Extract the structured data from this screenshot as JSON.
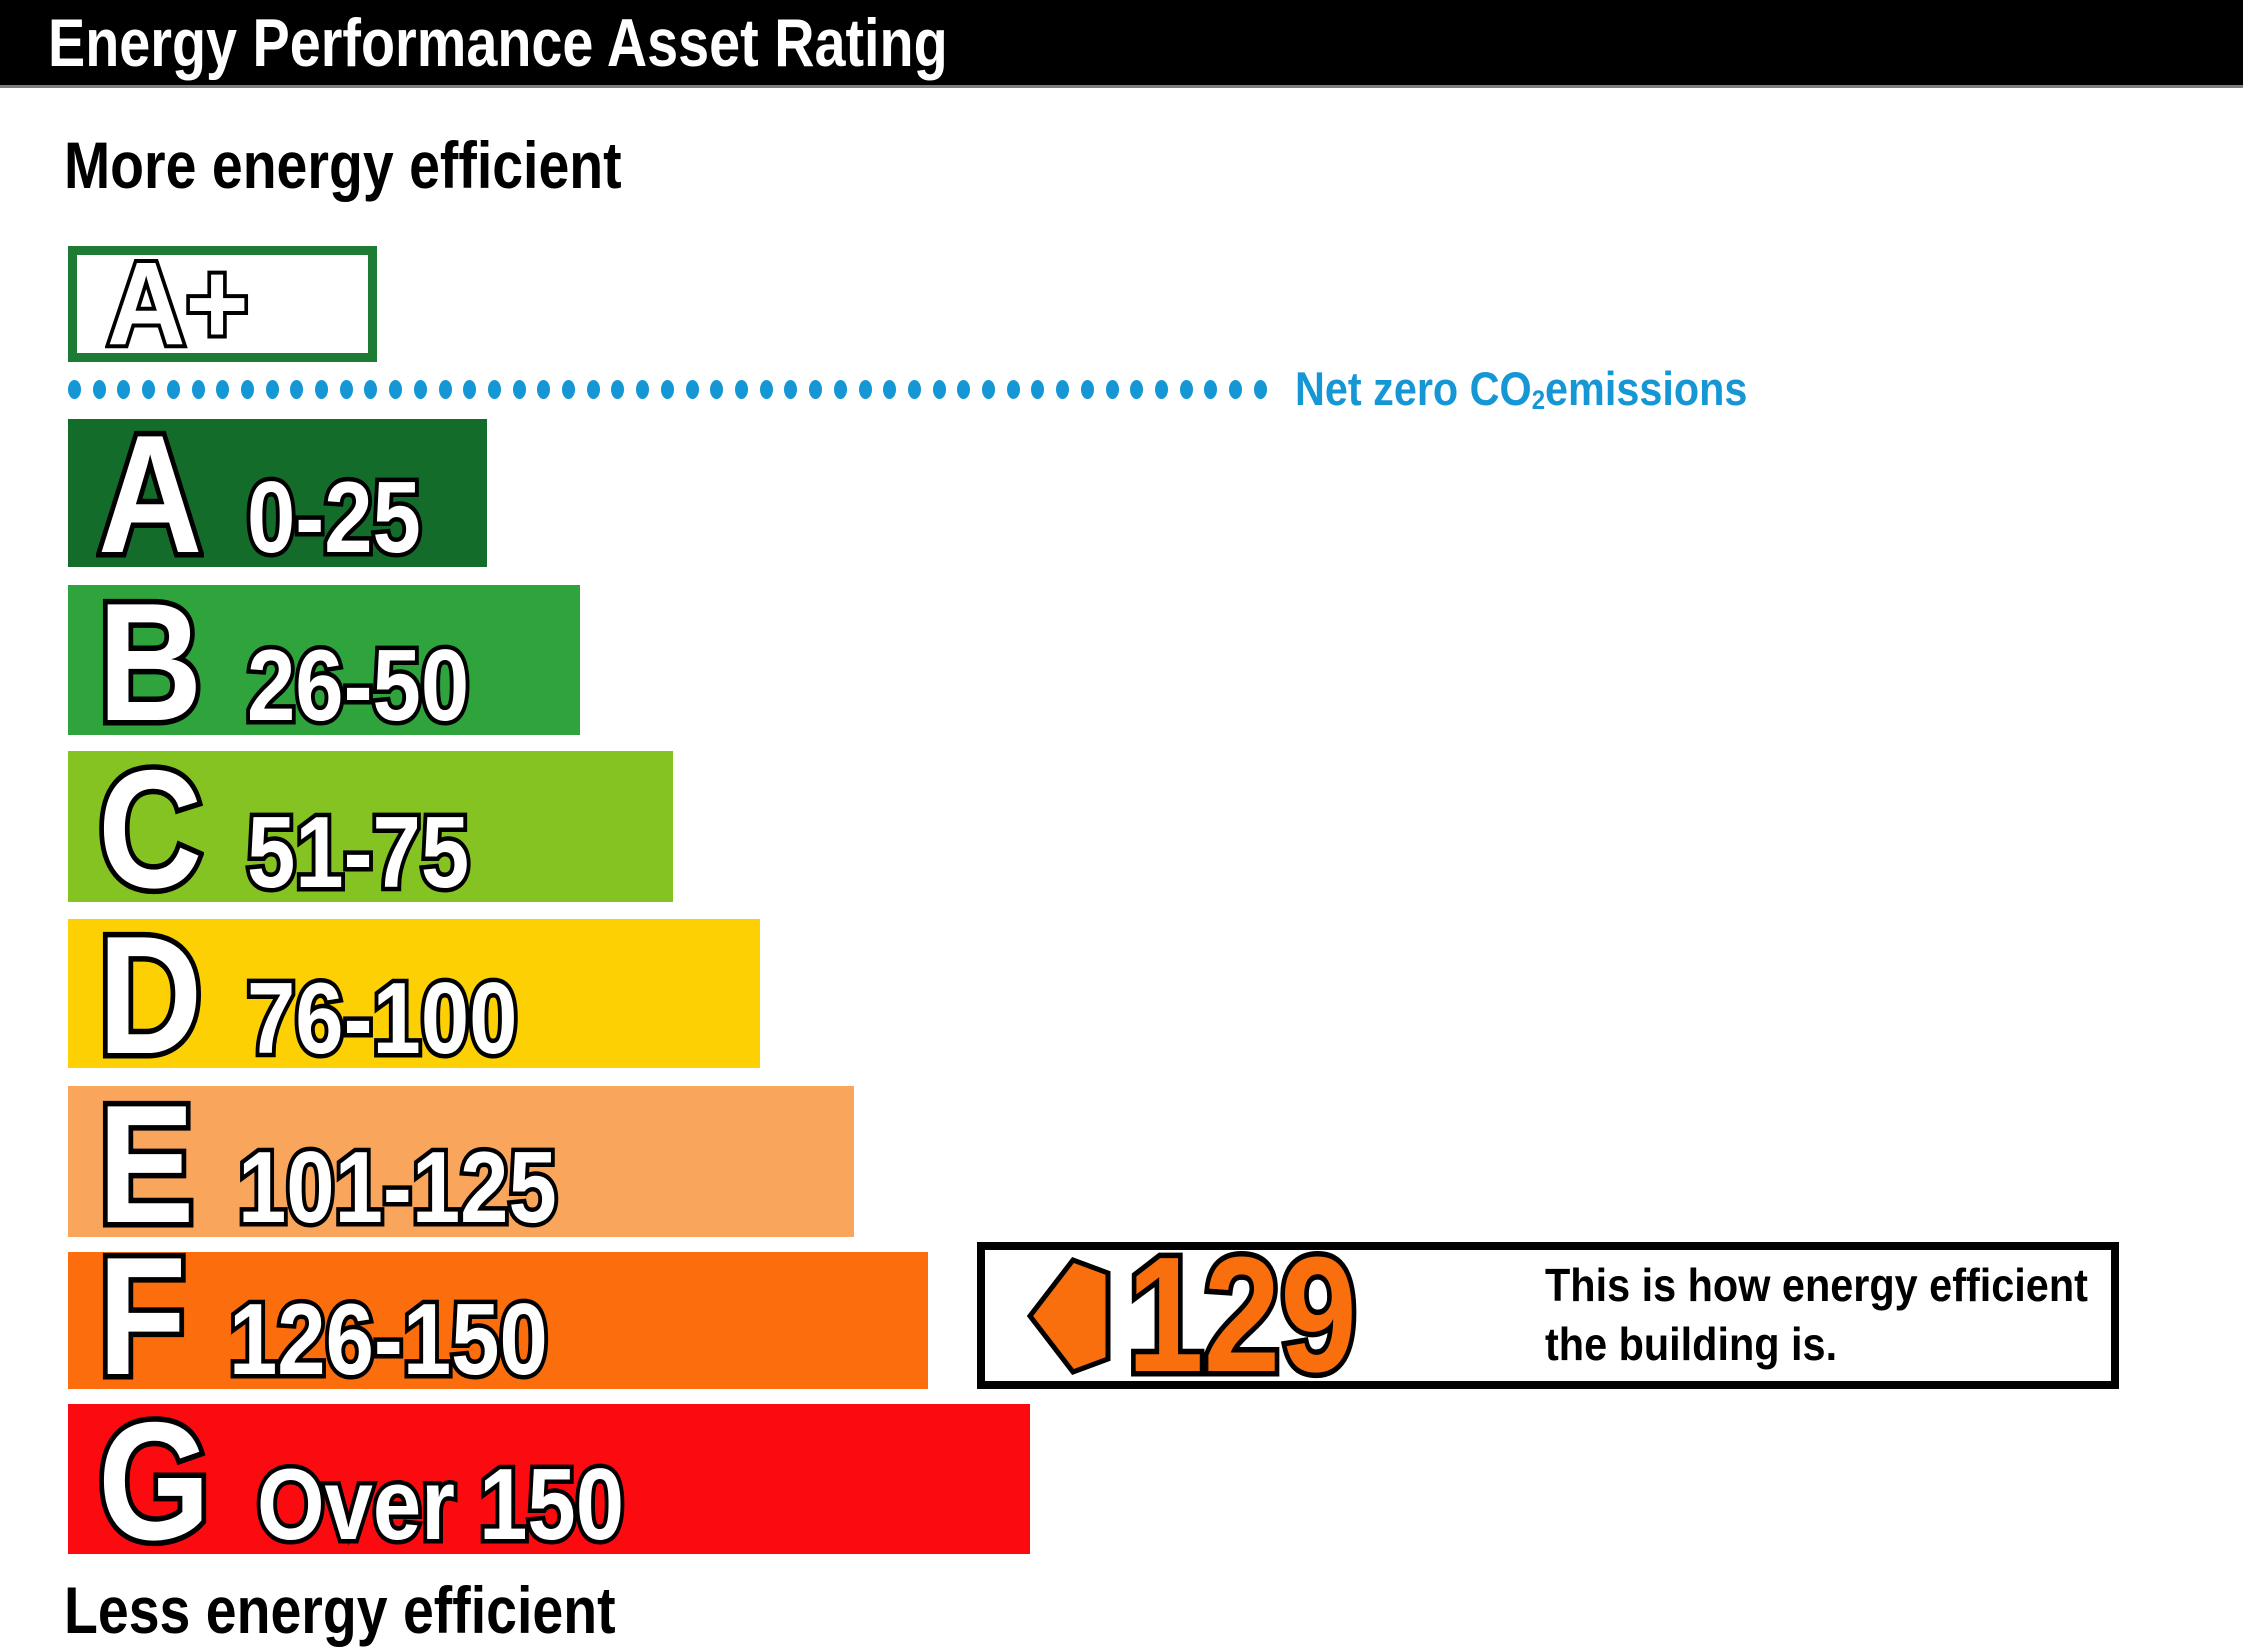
{
  "header": {
    "title": "Energy Performance Asset Rating"
  },
  "top_label": "More energy efficient",
  "bottom_label": "Less energy efficient",
  "aplus": {
    "label": "A+",
    "border_color": "#1e7b33"
  },
  "net_zero": {
    "text_prefix": "Net zero CO",
    "subscript": "2",
    "text_suffix": " emissions",
    "color": "#1697d5",
    "dot_count": 49
  },
  "bars": [
    {
      "letter": "A",
      "range": "0-25",
      "color": "#146c2a"
    },
    {
      "letter": "B",
      "range": "26-50",
      "color": "#2fa33c"
    },
    {
      "letter": "C",
      "range": "51-75",
      "color": "#85c322"
    },
    {
      "letter": "D",
      "range": "76-100",
      "color": "#fdd004"
    },
    {
      "letter": "E",
      "range": "101-125",
      "color": "#faa55c"
    },
    {
      "letter": "F",
      "range": "126-150",
      "color": "#fb6d0d"
    },
    {
      "letter": "G",
      "range": "Over 150",
      "color": "#fb0a0f"
    }
  ],
  "indicator": {
    "value": "129",
    "arrow_color": "#f96f0e",
    "value_color": "#f96f0e",
    "description_line1": "This is how energy efficient",
    "description_line2": "the building is."
  },
  "chart_data": {
    "type": "bar",
    "orientation": "horizontal",
    "title": "Energy Performance Asset Rating",
    "categories": [
      "A+",
      "A",
      "B",
      "C",
      "D",
      "E",
      "F",
      "G"
    ],
    "band_ranges": [
      "Net zero CO2 emissions",
      "0-25",
      "26-50",
      "51-75",
      "76-100",
      "101-125",
      "126-150",
      "Over 150"
    ],
    "relative_bar_widths": [
      0.32,
      0.44,
      0.53,
      0.63,
      0.72,
      0.82,
      0.89,
      1.0
    ],
    "band_colors": [
      "#ffffff",
      "#146c2a",
      "#2fa33c",
      "#85c322",
      "#fdd004",
      "#faa55c",
      "#fb6d0d",
      "#fb0a0f"
    ],
    "current_rating": {
      "value": 129,
      "band": "F"
    },
    "annotations": [
      "More energy efficient",
      "Less energy efficient",
      "Net zero CO2 emissions",
      "This is how energy efficient the building is."
    ],
    "legend_position": "none",
    "grid": false
  }
}
